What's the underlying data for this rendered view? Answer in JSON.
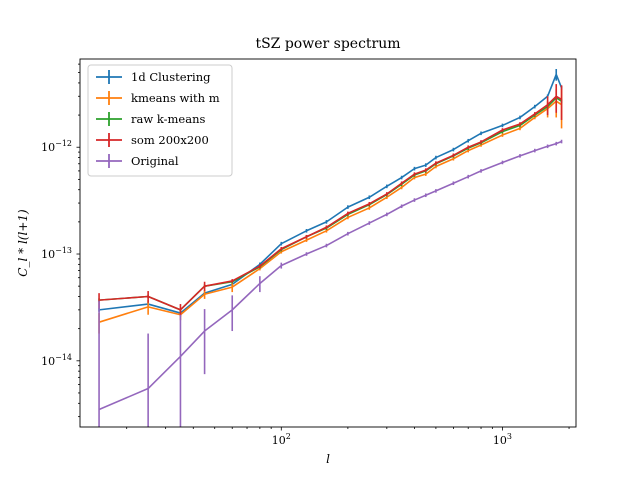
{
  "chart_data": {
    "type": "line",
    "title": "tSZ power spectrum",
    "xlabel": "l",
    "ylabel": "C_l * l(l+1)",
    "xscale": "log",
    "yscale": "log",
    "xlim": [
      12.3,
      2150
    ],
    "ylim": [
      2.4e-15,
      6.7e-12
    ],
    "x_tick_labels": [
      {
        "value": 100,
        "mantissa": "10",
        "exp": "2"
      },
      {
        "value": 1000,
        "mantissa": "10",
        "exp": "3"
      }
    ],
    "y_tick_labels": [
      {
        "value": 1e-14,
        "mantissa": "10",
        "exp": "−14"
      },
      {
        "value": 1e-13,
        "mantissa": "10",
        "exp": "−13"
      },
      {
        "value": 1e-12,
        "mantissa": "10",
        "exp": "−12"
      }
    ],
    "grid": false,
    "legend": "top-left",
    "x": [
      15,
      25,
      35,
      45,
      60,
      80,
      100,
      130,
      160,
      200,
      250,
      300,
      350,
      400,
      450,
      500,
      600,
      700,
      800,
      1000,
      1200,
      1400,
      1600,
      1750,
      1850
    ],
    "series": [
      {
        "name": "1d Clustering",
        "color": "#1f77b4",
        "values": [
          3e-14,
          3.4e-14,
          2.8e-14,
          4.3e-14,
          5.2e-14,
          8e-14,
          1.25e-13,
          1.65e-13,
          2e-13,
          2.75e-13,
          3.4e-13,
          4.3e-13,
          5.2e-13,
          6.3e-13,
          6.8e-13,
          8e-13,
          9.5e-13,
          1.15e-12,
          1.35e-12,
          1.6e-12,
          1.9e-12,
          2.4e-12,
          3e-12,
          4.8e-12,
          3.6e-12
        ],
        "errors": [
          0,
          0,
          0,
          0,
          0,
          0,
          0,
          0,
          0,
          0,
          0,
          0,
          0,
          0,
          0,
          0,
          0,
          0,
          0,
          0,
          0,
          0,
          0,
          6e-13,
          0
        ]
      },
      {
        "name": "kmeans with m",
        "color": "#ff7f0e",
        "values": [
          2.3e-14,
          3.2e-14,
          2.7e-14,
          4.2e-14,
          4.9e-14,
          7.3e-14,
          1.05e-13,
          1.35e-13,
          1.65e-13,
          2.2e-13,
          2.7e-13,
          3.4e-13,
          4.2e-13,
          5.2e-13,
          5.6e-13,
          6.6e-13,
          7.8e-13,
          9.3e-13,
          1.05e-12,
          1.3e-12,
          1.5e-12,
          1.9e-12,
          2.3e-12,
          2.7e-12,
          2.5e-12
        ],
        "errors": [
          5e-15,
          5e-15,
          3e-15,
          4e-15,
          5e-15,
          0,
          0,
          0,
          0,
          0,
          0,
          0,
          0,
          0,
          0,
          0,
          0,
          0,
          0,
          0,
          0,
          0,
          4e-13,
          8e-13,
          1e-12
        ]
      },
      {
        "name": "raw k-means",
        "color": "#2ca02c",
        "values": [
          3.7e-14,
          4e-14,
          3e-14,
          5e-14,
          5.5e-14,
          7.6e-14,
          1.1e-13,
          1.45e-13,
          1.75e-13,
          2.35e-13,
          2.9e-13,
          3.6e-13,
          4.5e-13,
          5.5e-13,
          6e-13,
          7e-13,
          8.3e-13,
          9.8e-13,
          1.1e-12,
          1.4e-12,
          1.6e-12,
          2e-12,
          2.4e-12,
          2.9e-12,
          2.7e-12
        ],
        "errors": [
          0,
          0,
          0,
          0,
          0,
          0,
          0,
          0,
          0,
          0,
          0,
          0,
          0,
          0,
          0,
          0,
          0,
          0,
          0,
          0,
          0,
          0,
          0,
          0,
          0
        ]
      },
      {
        "name": "som 200x200",
        "color": "#d62728",
        "values": [
          3.7e-14,
          4e-14,
          3e-14,
          5e-14,
          5.6e-14,
          7.7e-14,
          1.12e-13,
          1.45e-13,
          1.78e-13,
          2.4e-13,
          2.95e-13,
          3.65e-13,
          4.6e-13,
          5.6e-13,
          6.1e-13,
          7.1e-13,
          8.4e-13,
          1e-12,
          1.12e-12,
          1.45e-12,
          1.65e-12,
          2.05e-12,
          2.5e-12,
          3e-12,
          2.8e-12
        ],
        "errors": [
          6e-15,
          5e-15,
          4e-15,
          5e-15,
          0,
          0,
          0,
          0,
          0,
          0,
          0,
          0,
          0,
          0,
          0,
          0,
          0,
          0,
          0,
          0,
          0,
          0,
          5e-13,
          9e-13,
          1e-12
        ]
      },
      {
        "name": "Original",
        "color": "#9467bd",
        "values": [
          3.5e-15,
          5.5e-15,
          1.1e-14,
          1.9e-14,
          3e-14,
          5.3e-14,
          7.8e-14,
          1e-13,
          1.2e-13,
          1.55e-13,
          1.95e-13,
          2.35e-13,
          2.8e-13,
          3.2e-13,
          3.55e-13,
          3.9e-13,
          4.6e-13,
          5.3e-13,
          6e-13,
          7.2e-13,
          8.3e-13,
          9.3e-13,
          1.02e-12,
          1.08e-12,
          1.13e-12
        ],
        "errors": [
          3.3e-14,
          1.25e-14,
          1.6e-14,
          1.15e-14,
          1.1e-14,
          9e-15,
          5e-15,
          0,
          0,
          0,
          0,
          0,
          0,
          0,
          0,
          0,
          0,
          0,
          0,
          0,
          0,
          0,
          0,
          0,
          0
        ]
      }
    ]
  }
}
